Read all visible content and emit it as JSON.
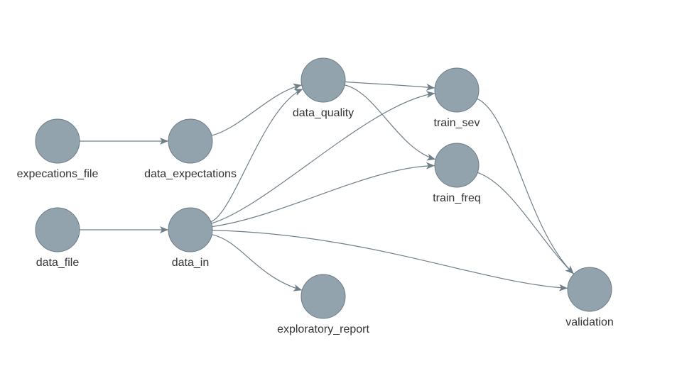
{
  "graph": {
    "nodes": [
      {
        "id": "expecations_file",
        "label": "expecations_file"
      },
      {
        "id": "data_expectations",
        "label": "data_expectations"
      },
      {
        "id": "data_file",
        "label": "data_file"
      },
      {
        "id": "data_in",
        "label": "data_in"
      },
      {
        "id": "data_quality",
        "label": "data_quality"
      },
      {
        "id": "exploratory_report",
        "label": "exploratory_report"
      },
      {
        "id": "train_sev",
        "label": "train_sev"
      },
      {
        "id": "train_freq",
        "label": "train_freq"
      },
      {
        "id": "validation",
        "label": "validation"
      }
    ],
    "edges": [
      {
        "from": "expecations_file",
        "to": "data_expectations"
      },
      {
        "from": "data_file",
        "to": "data_in"
      },
      {
        "from": "data_expectations",
        "to": "data_quality"
      },
      {
        "from": "data_in",
        "to": "data_quality"
      },
      {
        "from": "data_in",
        "to": "train_sev"
      },
      {
        "from": "data_in",
        "to": "train_freq"
      },
      {
        "from": "data_in",
        "to": "validation"
      },
      {
        "from": "data_in",
        "to": "exploratory_report"
      },
      {
        "from": "data_quality",
        "to": "train_sev"
      },
      {
        "from": "data_quality",
        "to": "train_freq"
      },
      {
        "from": "train_sev",
        "to": "validation"
      },
      {
        "from": "train_freq",
        "to": "validation"
      }
    ],
    "colors": {
      "node_fill": "#93a3ad",
      "node_stroke": "#6b7c86",
      "edge": "#6f7f88",
      "label": "#333333"
    }
  }
}
